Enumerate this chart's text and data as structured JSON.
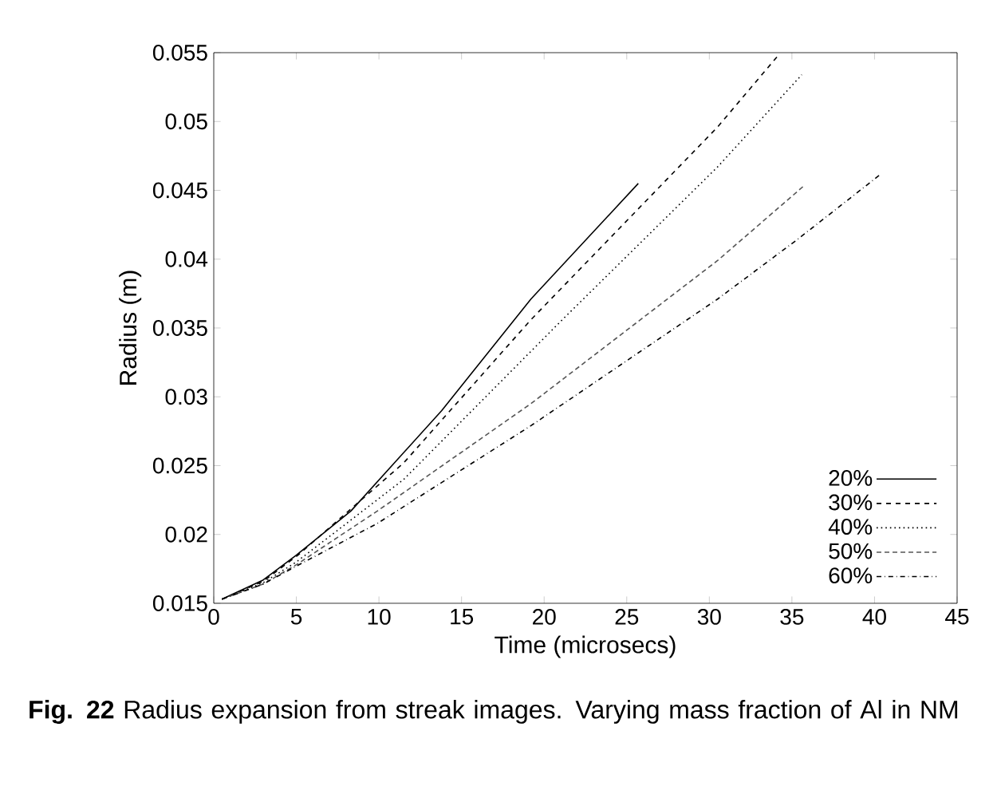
{
  "chart_data": {
    "type": "line",
    "xlabel": "Time (microsecs)",
    "ylabel": "Radius (m)",
    "xlim": [
      0,
      45
    ],
    "ylim": [
      0.015,
      0.055
    ],
    "xticks": [
      0,
      5,
      10,
      15,
      20,
      25,
      30,
      35,
      40,
      45
    ],
    "yticks": [
      0.015,
      0.02,
      0.025,
      0.03,
      0.035,
      0.04,
      0.045,
      0.05,
      0.055
    ],
    "legend": "bottom right",
    "grid": false,
    "annotations": [
      "**Fig. 22** Radius expansion from streak images. Varying mass fraction of Al in NM"
    ],
    "series": [
      {
        "name": "20%",
        "color": "#000000",
        "line_style": "solid",
        "x": [
          0.5,
          3,
          5,
          8.3,
          13.8,
          19.2,
          25.7
        ],
        "values": [
          0.0153,
          0.0167,
          0.0185,
          0.0217,
          0.029,
          0.0371,
          0.0455
        ]
      },
      {
        "name": "30%",
        "color": "#000000",
        "line_style": "dashed",
        "x": [
          0.5,
          3,
          5.1,
          11.5,
          19.2,
          30.5,
          34.1
        ],
        "values": [
          0.0153,
          0.0166,
          0.0185,
          0.0252,
          0.0356,
          0.0496,
          0.0547
        ]
      },
      {
        "name": "40%",
        "color": "#000000",
        "line_style": "dotted",
        "x": [
          0.5,
          3,
          5,
          11.5,
          21.1,
          30.5,
          35.6
        ],
        "values": [
          0.0153,
          0.0165,
          0.018,
          0.024,
          0.0356,
          0.0467,
          0.0534
        ]
      },
      {
        "name": "50%",
        "color": "#555555",
        "line_style": "densely dashed",
        "x": [
          0.5,
          3,
          5,
          9.9,
          19.2,
          30.5,
          35.7
        ],
        "values": [
          0.0153,
          0.0164,
          0.0178,
          0.0217,
          0.0295,
          0.0399,
          0.0453
        ]
      },
      {
        "name": "60%",
        "color": "#000000",
        "line_style": "dashdotted",
        "x": [
          0.5,
          3,
          5,
          9.9,
          19.2,
          30.5,
          35.3,
          40.3
        ],
        "values": [
          0.0153,
          0.0164,
          0.0177,
          0.0208,
          0.0279,
          0.0371,
          0.0414,
          0.0461
        ]
      }
    ]
  }
}
